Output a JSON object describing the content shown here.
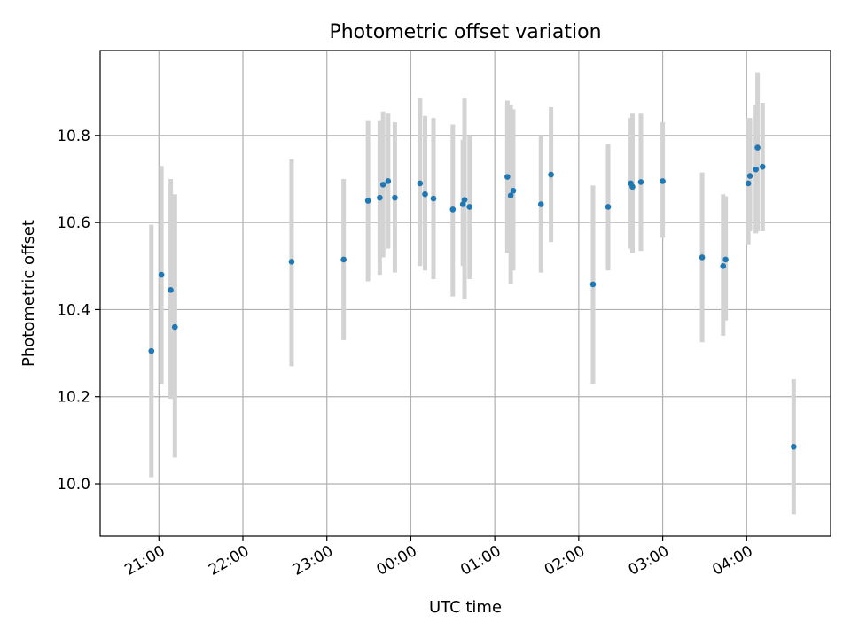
{
  "chart_data": {
    "type": "scatter",
    "title": "Photometric offset variation",
    "xlabel": "UTC time",
    "ylabel": "Photometric offset",
    "x_unit": "hours since 00:00 UTC",
    "xlim": [
      -3.7,
      5.0
    ],
    "ylim": [
      9.88,
      10.995
    ],
    "x_tick_values": [
      -3,
      -2,
      -1,
      0,
      1,
      2,
      3,
      4
    ],
    "x_tick_labels": [
      "21:00",
      "22:00",
      "23:00",
      "00:00",
      "01:00",
      "02:00",
      "03:00",
      "04:00"
    ],
    "y_tick_values": [
      10.0,
      10.2,
      10.4,
      10.6,
      10.8
    ],
    "y_tick_labels": [
      "10.0",
      "10.2",
      "10.4",
      "10.6",
      "10.8"
    ],
    "grid": true,
    "point_color": "#1f77b4",
    "errorbar_color": "#d3d3d3",
    "points": [
      {
        "time": "20:54",
        "x": -3.09,
        "y": 10.305,
        "lo": 10.015,
        "hi": 10.595
      },
      {
        "time": "21:01",
        "x": -2.97,
        "y": 10.48,
        "lo": 10.23,
        "hi": 10.73
      },
      {
        "time": "21:08",
        "x": -2.86,
        "y": 10.445,
        "lo": 10.195,
        "hi": 10.7
      },
      {
        "time": "21:11",
        "x": -2.81,
        "y": 10.36,
        "lo": 10.06,
        "hi": 10.665
      },
      {
        "time": "22:35",
        "x": -1.42,
        "y": 10.51,
        "lo": 10.27,
        "hi": 10.745
      },
      {
        "time": "23:12",
        "x": -0.8,
        "y": 10.515,
        "lo": 10.33,
        "hi": 10.7
      },
      {
        "time": "23:30",
        "x": -0.51,
        "y": 10.65,
        "lo": 10.465,
        "hi": 10.835
      },
      {
        "time": "23:38",
        "x": -0.37,
        "y": 10.657,
        "lo": 10.48,
        "hi": 10.835
      },
      {
        "time": "23:40",
        "x": -0.33,
        "y": 10.687,
        "lo": 10.52,
        "hi": 10.855
      },
      {
        "time": "23:44",
        "x": -0.27,
        "y": 10.695,
        "lo": 10.54,
        "hi": 10.85
      },
      {
        "time": "23:48",
        "x": -0.19,
        "y": 10.657,
        "lo": 10.485,
        "hi": 10.83
      },
      {
        "time": "00:07",
        "x": 0.11,
        "y": 10.69,
        "lo": 10.5,
        "hi": 10.885
      },
      {
        "time": "00:10",
        "x": 0.17,
        "y": 10.665,
        "lo": 10.49,
        "hi": 10.845
      },
      {
        "time": "00:16",
        "x": 0.27,
        "y": 10.655,
        "lo": 10.47,
        "hi": 10.84
      },
      {
        "time": "00:30",
        "x": 0.5,
        "y": 10.63,
        "lo": 10.43,
        "hi": 10.825
      },
      {
        "time": "00:37",
        "x": 0.62,
        "y": 10.642,
        "lo": 10.5,
        "hi": 10.79
      },
      {
        "time": "00:38",
        "x": 0.64,
        "y": 10.652,
        "lo": 10.425,
        "hi": 10.885
      },
      {
        "time": "00:42",
        "x": 0.7,
        "y": 10.636,
        "lo": 10.47,
        "hi": 10.8
      },
      {
        "time": "01:09",
        "x": 1.15,
        "y": 10.705,
        "lo": 10.53,
        "hi": 10.88
      },
      {
        "time": "01:11",
        "x": 1.19,
        "y": 10.662,
        "lo": 10.46,
        "hi": 10.87
      },
      {
        "time": "01:13",
        "x": 1.22,
        "y": 10.673,
        "lo": 10.49,
        "hi": 10.86
      },
      {
        "time": "01:33",
        "x": 1.55,
        "y": 10.642,
        "lo": 10.485,
        "hi": 10.8
      },
      {
        "time": "01:40",
        "x": 1.67,
        "y": 10.71,
        "lo": 10.555,
        "hi": 10.865
      },
      {
        "time": "02:10",
        "x": 2.17,
        "y": 10.458,
        "lo": 10.23,
        "hi": 10.685
      },
      {
        "time": "02:21",
        "x": 2.35,
        "y": 10.636,
        "lo": 10.49,
        "hi": 10.78
      },
      {
        "time": "02:37",
        "x": 2.62,
        "y": 10.69,
        "lo": 10.54,
        "hi": 10.84
      },
      {
        "time": "02:38",
        "x": 2.64,
        "y": 10.682,
        "lo": 10.53,
        "hi": 10.85
      },
      {
        "time": "02:44",
        "x": 2.74,
        "y": 10.693,
        "lo": 10.535,
        "hi": 10.85
      },
      {
        "time": "03:00",
        "x": 3.0,
        "y": 10.695,
        "lo": 10.565,
        "hi": 10.83
      },
      {
        "time": "03:28",
        "x": 3.47,
        "y": 10.52,
        "lo": 10.325,
        "hi": 10.715
      },
      {
        "time": "03:43",
        "x": 3.72,
        "y": 10.5,
        "lo": 10.34,
        "hi": 10.665
      },
      {
        "time": "03:45",
        "x": 3.75,
        "y": 10.515,
        "lo": 10.375,
        "hi": 10.66
      },
      {
        "time": "04:01",
        "x": 4.02,
        "y": 10.69,
        "lo": 10.55,
        "hi": 10.84
      },
      {
        "time": "04:02",
        "x": 4.04,
        "y": 10.707,
        "lo": 10.58,
        "hi": 10.84
      },
      {
        "time": "04:07",
        "x": 4.11,
        "y": 10.722,
        "lo": 10.575,
        "hi": 10.87
      },
      {
        "time": "04:08",
        "x": 4.13,
        "y": 10.772,
        "lo": 10.58,
        "hi": 10.945
      },
      {
        "time": "04:11",
        "x": 4.19,
        "y": 10.728,
        "lo": 10.58,
        "hi": 10.875
      },
      {
        "time": "04:33",
        "x": 4.56,
        "y": 10.085,
        "lo": 9.93,
        "hi": 10.24
      }
    ]
  }
}
